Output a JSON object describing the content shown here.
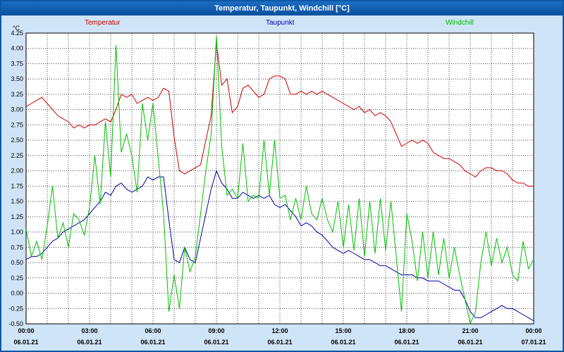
{
  "window": {
    "title": "Temperatur, Taupunkt, Windchill [°C]"
  },
  "chart_data": {
    "type": "line",
    "title": "Temperatur, Taupunkt, Windchill [°C]",
    "ylabel": "°C",
    "xlabel": "",
    "ylim": [
      -0.5,
      4.25
    ],
    "y_tick_step": 0.25,
    "y_tick_labels": [
      "4.25",
      "4.00",
      "3.75",
      "3.50",
      "3.25",
      "3.00",
      "2.75",
      "2.50",
      "2.25",
      "2.00",
      "1.75",
      "1.50",
      "1.25",
      "1.00",
      "0.75",
      "0.50",
      "0.25",
      "0.00",
      "-0.25",
      "-0.50"
    ],
    "x_range_hours": [
      0,
      24
    ],
    "x_tick_labels": [
      "00:00",
      "03:00",
      "06:00",
      "09:00",
      "12:00",
      "15:00",
      "18:00",
      "21:00",
      "00:00"
    ],
    "x_date_labels": [
      "06.01.21",
      "06.01.21",
      "06.01.21",
      "06.01.21",
      "06.01.21",
      "06.01.21",
      "06.01.21",
      "06.01.21",
      "07.01.21"
    ],
    "grid": "dotted, hourly vertical and 0.25 °C horizontal",
    "legend_position": "top",
    "sample_interval_minutes": 15,
    "series": [
      {
        "name": "Temperatur",
        "color": "#cc0000",
        "values": [
          3.05,
          3.1,
          3.15,
          3.2,
          3.1,
          3.0,
          2.9,
          2.85,
          2.8,
          2.7,
          2.75,
          2.7,
          2.75,
          2.75,
          2.8,
          2.85,
          2.8,
          3.0,
          3.25,
          3.2,
          3.25,
          3.1,
          3.15,
          3.2,
          3.15,
          3.2,
          3.35,
          3.3,
          2.55,
          2.0,
          1.95,
          2.0,
          2.05,
          2.1,
          2.5,
          2.9,
          4.1,
          3.4,
          3.5,
          2.95,
          3.05,
          3.35,
          3.4,
          3.3,
          3.2,
          3.25,
          3.5,
          3.55,
          3.55,
          3.5,
          3.25,
          3.25,
          3.3,
          3.25,
          3.3,
          3.25,
          3.3,
          3.25,
          3.2,
          3.15,
          3.1,
          3.05,
          3.0,
          3.05,
          2.95,
          3.0,
          2.9,
          2.95,
          2.9,
          2.8,
          2.6,
          2.4,
          2.45,
          2.5,
          2.45,
          2.5,
          2.45,
          2.3,
          2.25,
          2.2,
          2.2,
          2.15,
          2.1,
          2.0,
          1.95,
          1.9,
          2.0,
          2.05,
          2.05,
          2.0,
          2.0,
          1.95,
          1.85,
          1.8,
          1.8,
          1.75,
          1.75
        ]
      },
      {
        "name": "Taupunkt",
        "color": "#0000a8",
        "values": [
          0.55,
          0.6,
          0.6,
          0.65,
          0.75,
          0.85,
          0.9,
          1.0,
          1.05,
          1.1,
          1.15,
          1.2,
          1.3,
          1.4,
          1.5,
          1.65,
          1.6,
          1.75,
          1.8,
          1.7,
          1.65,
          1.7,
          1.75,
          1.9,
          1.85,
          1.9,
          1.9,
          1.2,
          0.55,
          0.5,
          0.75,
          0.55,
          0.5,
          0.9,
          1.3,
          1.7,
          2.0,
          1.8,
          1.7,
          1.55,
          1.55,
          1.65,
          1.6,
          1.55,
          1.6,
          1.55,
          1.6,
          1.45,
          1.4,
          1.45,
          1.35,
          1.25,
          1.1,
          1.15,
          1.1,
          1.0,
          0.95,
          0.85,
          0.75,
          0.7,
          0.65,
          0.7,
          0.65,
          0.6,
          0.55,
          0.55,
          0.5,
          0.45,
          0.45,
          0.4,
          0.35,
          0.3,
          0.3,
          0.3,
          0.25,
          0.25,
          0.2,
          0.2,
          0.2,
          0.15,
          0.1,
          0.05,
          0.05,
          -0.1,
          -0.3,
          -0.4,
          -0.4,
          -0.35,
          -0.3,
          -0.25,
          -0.2,
          -0.25,
          -0.25,
          -0.3,
          -0.35,
          -0.4,
          -0.45
        ]
      },
      {
        "name": "Windchill",
        "color": "#00c000",
        "values": [
          1.05,
          0.6,
          0.85,
          0.55,
          1.1,
          1.75,
          0.9,
          1.15,
          0.75,
          1.3,
          1.2,
          0.95,
          1.4,
          2.25,
          1.45,
          2.8,
          1.9,
          4.05,
          2.3,
          2.6,
          2.25,
          1.65,
          3.1,
          2.5,
          3.1,
          2.2,
          1.3,
          -0.3,
          0.3,
          -0.25,
          0.75,
          0.35,
          0.6,
          1.3,
          2.0,
          2.6,
          4.2,
          2.4,
          1.6,
          1.7,
          1.55,
          2.45,
          1.5,
          1.6,
          1.55,
          2.5,
          1.6,
          2.5,
          1.55,
          1.6,
          1.2,
          1.55,
          1.2,
          1.75,
          1.3,
          1.2,
          1.55,
          1.2,
          1.0,
          1.5,
          0.75,
          1.45,
          0.7,
          1.55,
          0.6,
          1.5,
          0.65,
          1.55,
          0.7,
          1.5,
          0.6,
          -0.3,
          1.3,
          0.85,
          0.2,
          1.0,
          0.25,
          1.0,
          0.3,
          0.9,
          0.25,
          0.75,
          0.3,
          -0.1,
          -0.5,
          -0.3,
          0.5,
          1.0,
          0.45,
          0.9,
          0.5,
          0.75,
          0.3,
          0.2,
          0.85,
          0.4,
          0.55
        ]
      }
    ]
  }
}
